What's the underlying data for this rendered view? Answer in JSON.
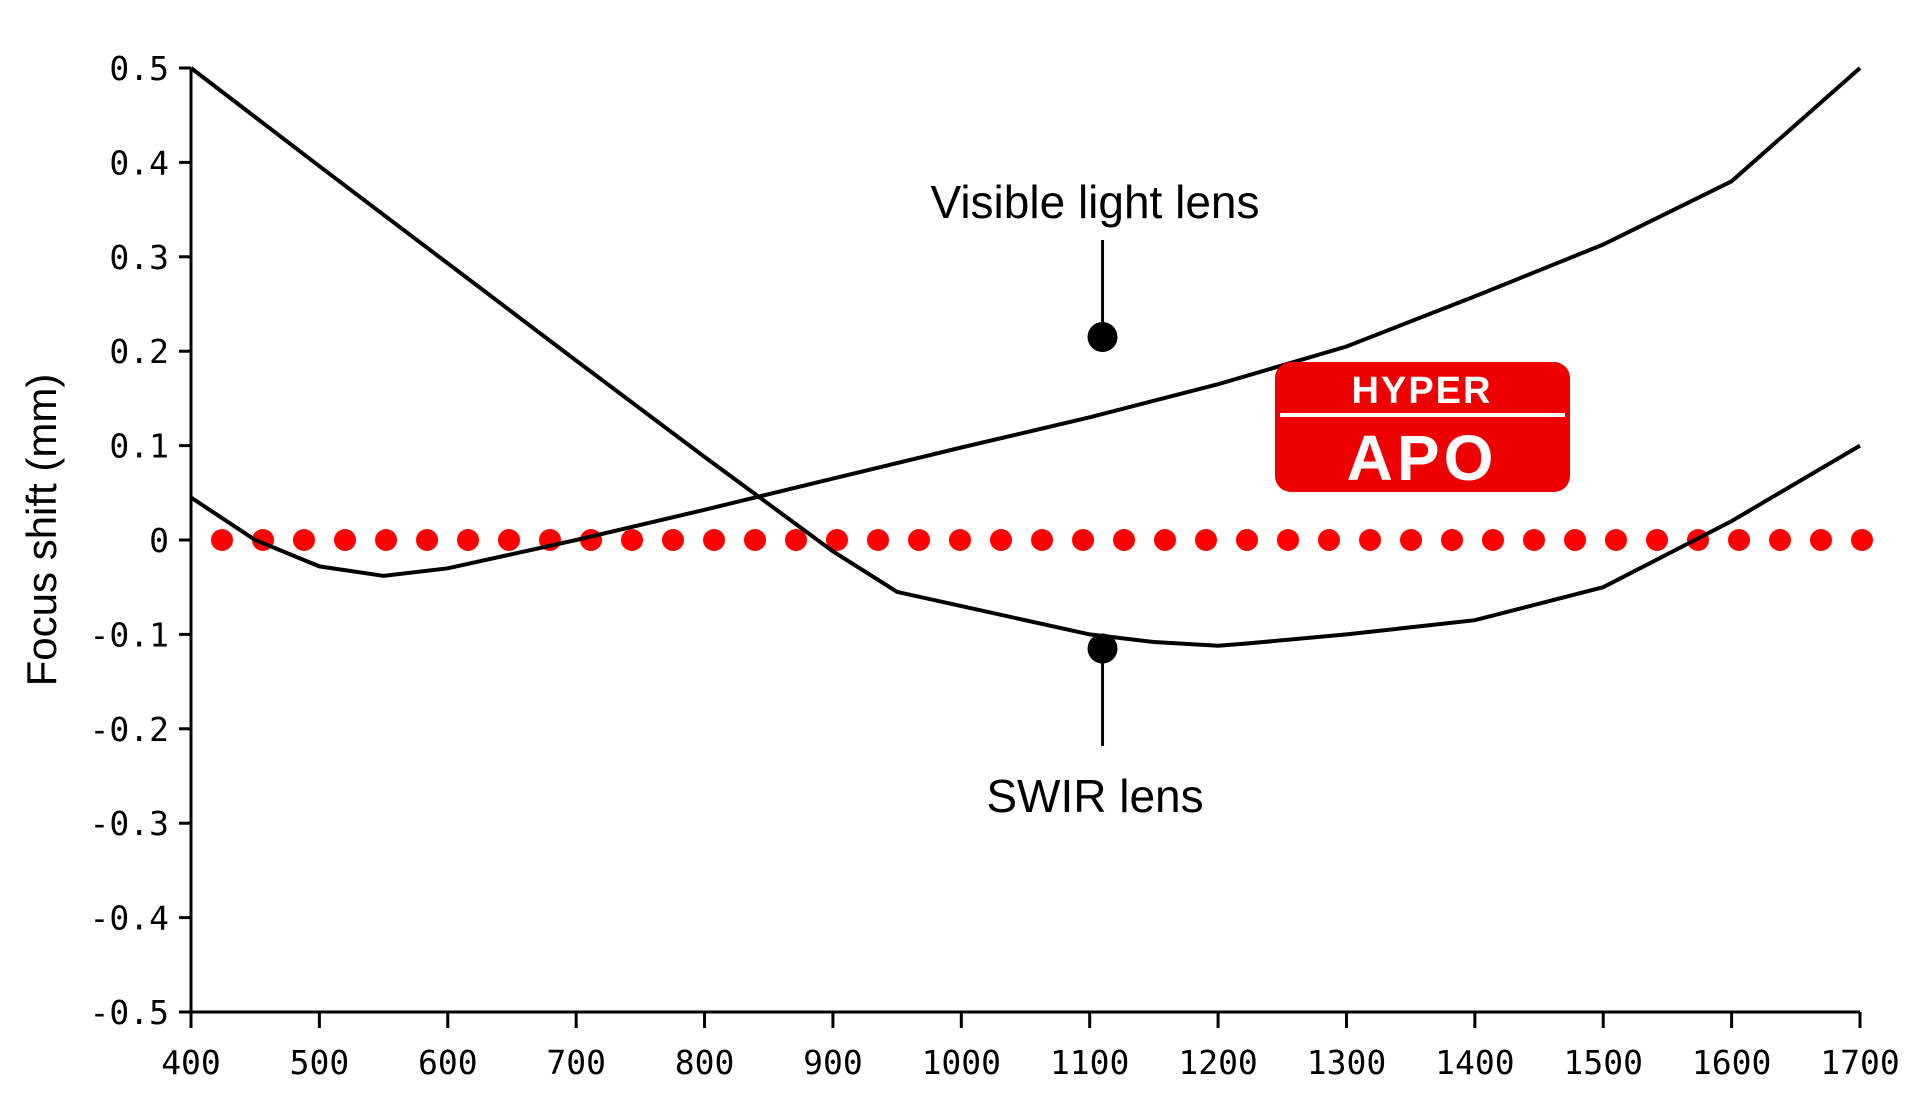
{
  "chart_data": {
    "type": "line",
    "title": "",
    "xlabel": "",
    "ylabel": "Focus shift (mm)",
    "xlim": [
      400,
      1700
    ],
    "ylim": [
      -0.5,
      0.5
    ],
    "x_ticks": [
      "400",
      "500",
      "600",
      "700",
      "800",
      "900",
      "1000",
      "1100",
      "1200",
      "1300",
      "1400",
      "1500",
      "1600",
      "1700"
    ],
    "y_ticks": [
      "0.5",
      "0.4",
      "0.3",
      "0.2",
      "0.1",
      "0",
      "-0.1",
      "-0.2",
      "-0.3",
      "-0.4",
      "-0.5"
    ],
    "grid": false,
    "series": [
      {
        "name": "Visible light lens",
        "color": "#000000",
        "x": [
          400,
          500,
          600,
          700,
          800,
          900,
          950,
          1000,
          1100,
          1150,
          1200,
          1220,
          1300,
          1400,
          1500,
          1600,
          1700
        ],
        "y": [
          0.5,
          0.396,
          0.293,
          0.19,
          0.088,
          -0.012,
          -0.055,
          -0.07,
          -0.1,
          -0.108,
          -0.112,
          -0.11,
          -0.1,
          -0.085,
          -0.05,
          0.02,
          0.1
        ]
      },
      {
        "name": "SWIR lens",
        "color": "#000000",
        "x": [
          400,
          450,
          500,
          550,
          600,
          650,
          700,
          800,
          900,
          1000,
          1100,
          1200,
          1220,
          1300,
          1400,
          1500,
          1600,
          1700
        ],
        "y": [
          0.045,
          0.0,
          -0.028,
          -0.038,
          -0.03,
          -0.015,
          0.0,
          0.032,
          0.065,
          0.098,
          0.13,
          0.165,
          0.173,
          0.205,
          0.258,
          0.313,
          0.38,
          0.5
        ]
      },
      {
        "name": "",
        "color": "#ff0000",
        "style": "dotted",
        "x": [
          400,
          1700
        ],
        "y": [
          0,
          0
        ]
      }
    ],
    "annotations": [
      {
        "text": "Visible light lens",
        "x": 1110,
        "y": 0.215
      },
      {
        "text": "SWIR lens",
        "x": 1110,
        "y": -0.115
      }
    ]
  },
  "logo": {
    "line1": "HYPER",
    "line2": "APO",
    "color": "#ee0000"
  }
}
